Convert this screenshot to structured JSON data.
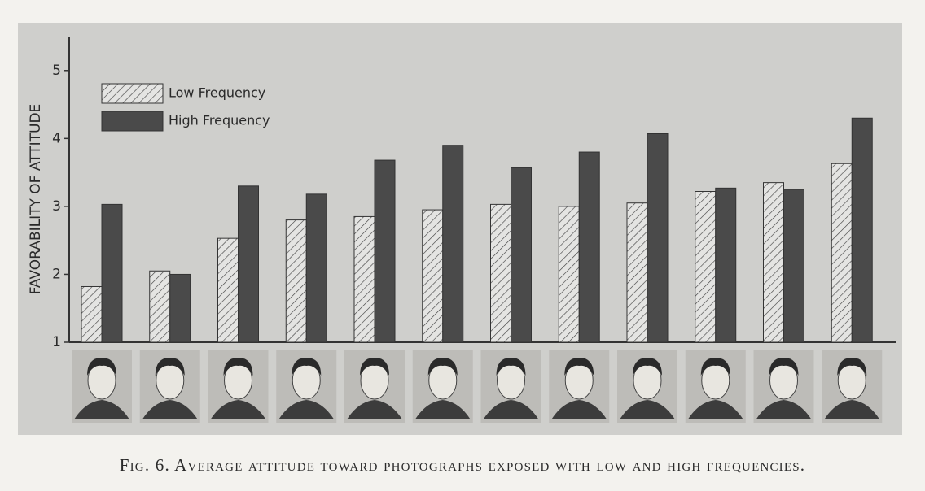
{
  "chart_data": {
    "type": "bar",
    "caption": "Fig. 6. Average attitude toward photographs exposed with low and high frequencies.",
    "y_label": "FAVORABILITY OF ATTITUDE",
    "categories": [
      null,
      null,
      null,
      null,
      null,
      null,
      null,
      null,
      null,
      null,
      null,
      null
    ],
    "series": [
      {
        "name": "Low Frequency",
        "color": "#e4e4e2",
        "pattern": "hatch",
        "values": [
          1.82,
          2.05,
          2.53,
          2.8,
          2.85,
          2.95,
          3.03,
          3.0,
          3.05,
          3.22,
          3.35,
          3.63
        ]
      },
      {
        "name": "High Frequency",
        "color": "#4a4a4a",
        "values": [
          3.03,
          2.0,
          3.3,
          3.18,
          3.68,
          3.9,
          3.57,
          3.8,
          4.07,
          3.27,
          3.25,
          4.3
        ]
      }
    ],
    "ylim": [
      1,
      5.5
    ],
    "yticks": [
      1,
      2,
      3,
      4,
      5
    ],
    "legend": "upper left"
  }
}
